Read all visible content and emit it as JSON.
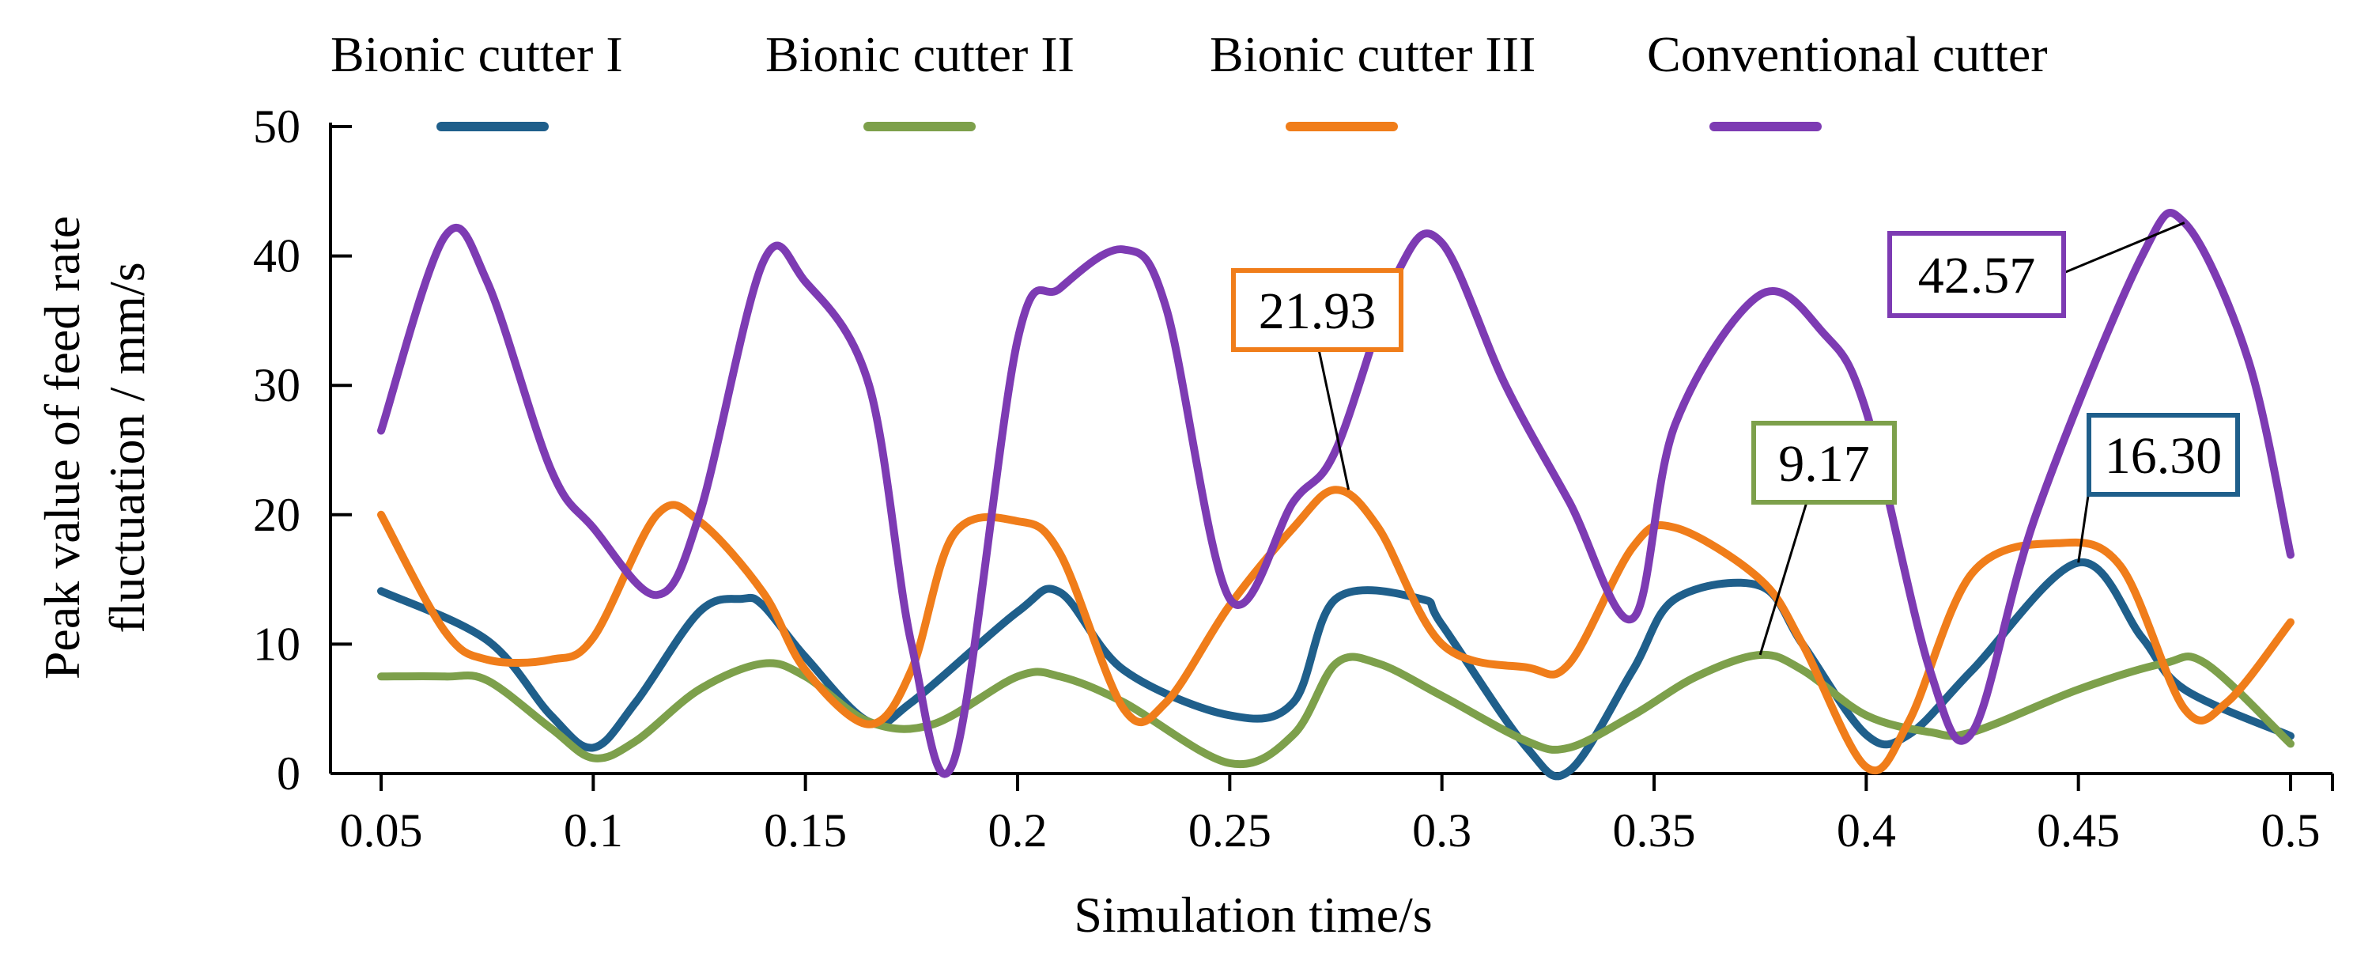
{
  "chart_data": {
    "type": "line",
    "title": "",
    "xlabel": "Simulation time/s",
    "ylabel": [
      "Peak value of  feed rate",
      "fluctuation / mm/s"
    ],
    "xlim": [
      0.05,
      0.5
    ],
    "ylim": [
      0,
      50
    ],
    "x_ticks": [
      "0.05",
      "0.1",
      "0.15",
      "0.2",
      "0.25",
      "0.3",
      "0.35",
      "0.4",
      "0.45",
      "0.5"
    ],
    "y_ticks": [
      "0",
      "10",
      "20",
      "30",
      "40",
      "50"
    ],
    "grid": false,
    "legend_position": "top",
    "series": [
      {
        "name": "Bionic cutter I",
        "color": "#1f5f8b",
        "x": [
          0.05,
          0.075,
          0.09,
          0.1,
          0.11,
          0.125,
          0.135,
          0.14,
          0.15,
          0.165,
          0.175,
          0.2,
          0.21,
          0.225,
          0.25,
          0.265,
          0.275,
          0.295,
          0.3,
          0.32,
          0.33,
          0.345,
          0.355,
          0.375,
          0.385,
          0.4,
          0.41,
          0.425,
          0.45,
          0.465,
          0.475,
          0.5
        ],
        "y": [
          14.1,
          10.3,
          4.5,
          2.0,
          5.5,
          12.5,
          13.5,
          13.0,
          9.0,
          4.0,
          5.5,
          12.5,
          14.0,
          8.0,
          4.5,
          5.5,
          13.5,
          13.5,
          11.5,
          2.0,
          0.2,
          8.0,
          13.5,
          14.5,
          10.0,
          3.0,
          3.0,
          8.0,
          16.3,
          10.5,
          6.5,
          2.9
        ]
      },
      {
        "name": "Bionic cutter II",
        "color": "#7da04b",
        "x": [
          0.05,
          0.065,
          0.075,
          0.09,
          0.1,
          0.11,
          0.125,
          0.14,
          0.15,
          0.165,
          0.18,
          0.2,
          0.21,
          0.225,
          0.25,
          0.265,
          0.275,
          0.285,
          0.3,
          0.32,
          0.33,
          0.345,
          0.36,
          0.375,
          0.385,
          0.4,
          0.415,
          0.425,
          0.45,
          0.47,
          0.48,
          0.5
        ],
        "y": [
          7.5,
          7.5,
          7.2,
          3.5,
          1.2,
          2.5,
          6.5,
          8.5,
          7.5,
          4.0,
          3.8,
          7.5,
          7.5,
          5.5,
          0.8,
          3.0,
          8.5,
          8.5,
          6.0,
          2.5,
          2.0,
          4.5,
          7.5,
          9.17,
          8.0,
          4.5,
          3.2,
          3.2,
          6.5,
          8.5,
          8.5,
          2.3
        ]
      },
      {
        "name": "Bionic cutter III",
        "color": "#f07d1a",
        "x": [
          0.05,
          0.065,
          0.075,
          0.09,
          0.1,
          0.115,
          0.125,
          0.14,
          0.15,
          0.165,
          0.175,
          0.185,
          0.2,
          0.21,
          0.225,
          0.235,
          0.25,
          0.265,
          0.275,
          0.285,
          0.3,
          0.32,
          0.33,
          0.345,
          0.355,
          0.375,
          0.385,
          0.4,
          0.41,
          0.425,
          0.445,
          0.46,
          0.475,
          0.485,
          0.5
        ],
        "y": [
          20.0,
          11.0,
          8.8,
          8.8,
          10.5,
          20.0,
          19.5,
          14.0,
          8.0,
          3.8,
          8.0,
          18.5,
          19.5,
          17.0,
          5.0,
          5.5,
          13.0,
          19.0,
          21.93,
          19.0,
          10.0,
          8.2,
          8.5,
          17.5,
          19.0,
          15.0,
          10.0,
          0.5,
          4.0,
          15.5,
          17.8,
          16.0,
          5.0,
          5.5,
          11.7
        ]
      },
      {
        "name": "Conventional cutter",
        "color": "#7d3bb3",
        "x": [
          0.05,
          0.065,
          0.075,
          0.09,
          0.1,
          0.115,
          0.125,
          0.14,
          0.15,
          0.165,
          0.175,
          0.185,
          0.2,
          0.21,
          0.225,
          0.235,
          0.25,
          0.265,
          0.275,
          0.29,
          0.3,
          0.315,
          0.33,
          0.345,
          0.355,
          0.375,
          0.39,
          0.4,
          0.415,
          0.425,
          0.44,
          0.465,
          0.475,
          0.49,
          0.5
        ],
        "y": [
          26.5,
          41.5,
          38.0,
          23.5,
          19.0,
          13.8,
          20.0,
          39.5,
          38.0,
          30.0,
          10.0,
          1.0,
          33.5,
          37.5,
          40.5,
          36.0,
          13.5,
          21.0,
          25.0,
          39.0,
          41.0,
          30.0,
          21.0,
          12.0,
          27.0,
          37.0,
          34.0,
          28.0,
          8.0,
          3.2,
          20.0,
          40.0,
          42.57,
          32.0,
          16.9
        ]
      }
    ],
    "annotations": [
      {
        "text": "21.93",
        "series": "Bionic cutter III",
        "x": 0.278,
        "y": 21.93
      },
      {
        "text": "9.17",
        "series": "Bionic cutter II",
        "x": 0.375,
        "y": 9.17
      },
      {
        "text": "16.30",
        "series": "Bionic cutter I",
        "x": 0.45,
        "y": 16.3
      },
      {
        "text": "42.57",
        "series": "Conventional cutter",
        "x": 0.475,
        "y": 42.57
      }
    ]
  }
}
